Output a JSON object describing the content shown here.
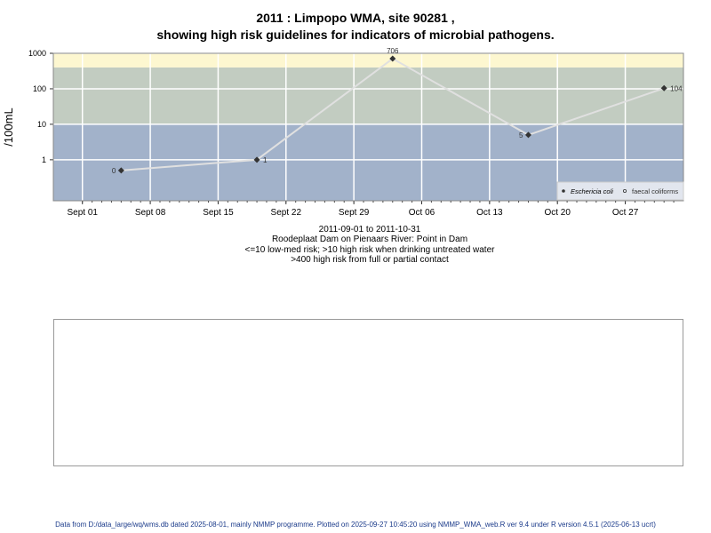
{
  "title_line1": "2011 : Limpopo WMA, site 90281 ,",
  "title_line2": "showing high risk guidelines for indicators of microbial pathogens.",
  "subtitle": [
    "2011-09-01 to 2011-10-31",
    "Roodeplaat Dam on Pienaars River: Point in Dam",
    "<=10 low-med risk; >10 high risk when drinking untreated water",
    ">400 high risk from full or partial contact"
  ],
  "footer": "Data from D:/data_large/wq/wms.db dated 2025-08-01, mainly NMMP programme. Plotted on 2025-09-27 10:45:20 using NMMP_WMA_web.R ver 9.4 under R version 4.5.1 (2025-06-13 ucrt)",
  "chart_data": {
    "type": "line",
    "ylabel": "/100mL",
    "y_scale": "log",
    "ylim": [
      0.07,
      1000
    ],
    "y_ticks": [
      1,
      10,
      100,
      1000
    ],
    "y_tick_labels": [
      "1",
      "10",
      "100",
      "1000"
    ],
    "xlim": [
      "2011-08-29",
      "2011-11-02"
    ],
    "x_ticks": [
      "2011-09-01",
      "2011-09-08",
      "2011-09-15",
      "2011-09-22",
      "2011-09-29",
      "2011-10-06",
      "2011-10-13",
      "2011-10-20",
      "2011-10-27"
    ],
    "x_tick_labels": [
      "Sept 01",
      "Sept 08",
      "Sept 15",
      "Sept 22",
      "Sept 29",
      "Oct 06",
      "Oct 13",
      "Oct 20",
      "Oct 27"
    ],
    "grid": true,
    "bands": [
      {
        "from": 0.07,
        "to": 10,
        "color": "#a2b2ca"
      },
      {
        "from": 10,
        "to": 400,
        "color": "#c2ccc1"
      },
      {
        "from": 400,
        "to": 1000,
        "color": "#fdf7d0"
      }
    ],
    "series": [
      {
        "name": "Eschericia coli",
        "marker": "filled-diamond",
        "color": "#333333",
        "line_color": "#e0e0e0",
        "x": [
          "2011-09-05",
          "2011-09-19",
          "2011-10-03",
          "2011-10-17",
          "2011-10-31"
        ],
        "values": [
          0,
          1,
          706,
          5,
          104
        ],
        "labels": [
          "0",
          "1",
          "706",
          "5",
          "104"
        ]
      },
      {
        "name": "faecal coliforms",
        "marker": "open-circle",
        "color": "#333333",
        "x": [],
        "values": []
      }
    ],
    "legend": "bottom-right"
  }
}
